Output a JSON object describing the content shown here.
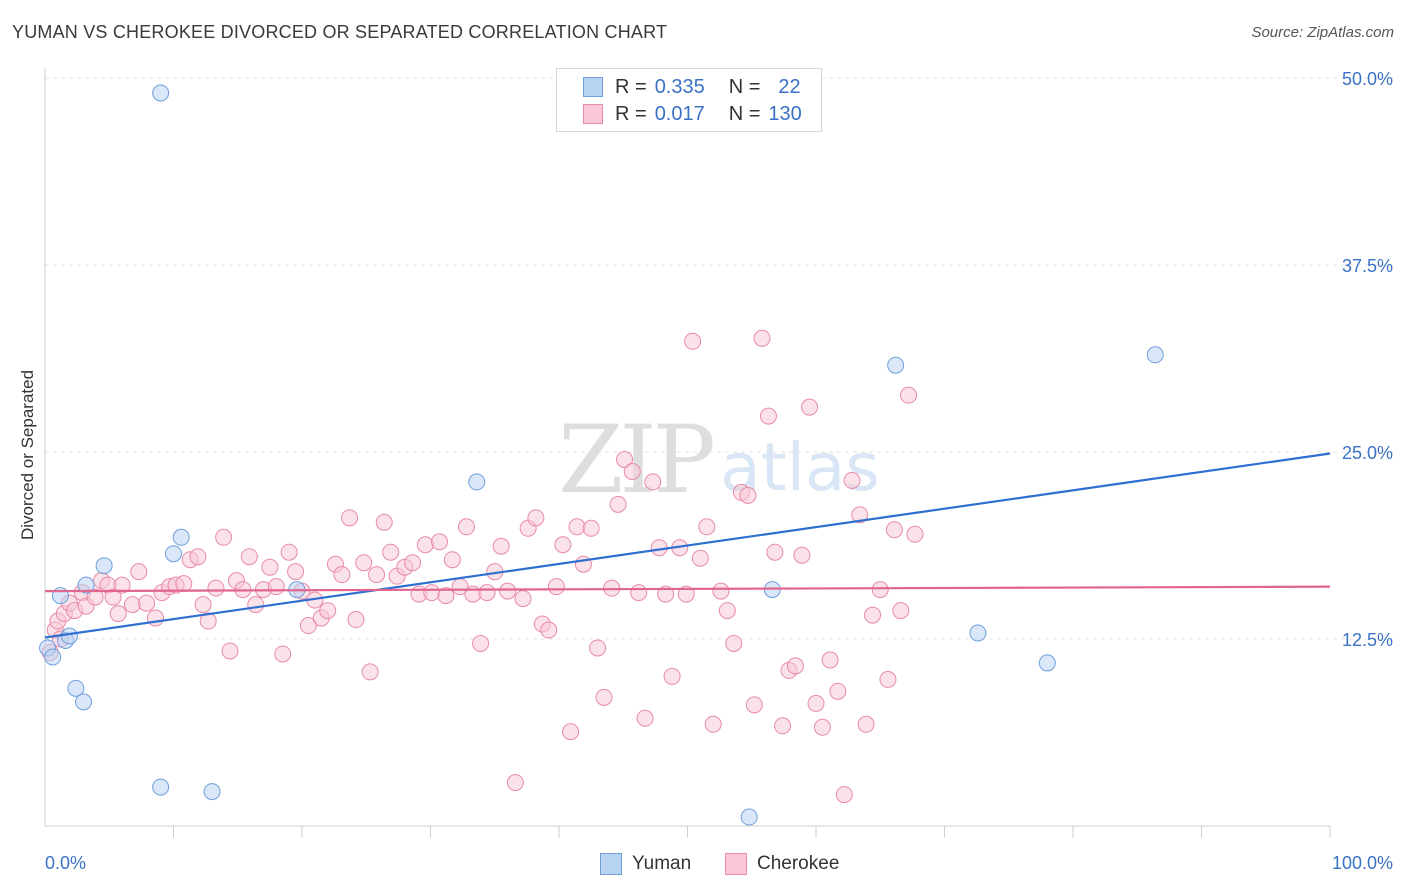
{
  "title": "YUMAN VS CHEROKEE DIVORCED OR SEPARATED CORRELATION CHART",
  "source": "Source: ZipAtlas.com",
  "watermark": {
    "zip": "ZIP",
    "atlas": "atlas"
  },
  "legend": {
    "rows": [
      {
        "r_label": "R =",
        "r_value": "0.335",
        "n_label": "N =",
        "n_value": "22"
      },
      {
        "r_label": "R =",
        "r_value": "0.017",
        "n_label": "N =",
        "n_value": "130"
      }
    ]
  },
  "bottom_legend": {
    "yuman": "Yuman",
    "cherokee": "Cherokee"
  },
  "colors": {
    "yuman_fill": "#b9d3f3",
    "yuman_stroke": "#6f9fdc",
    "yuman_line": "#2e6fd0",
    "cherokee_fill": "#f8c8d6",
    "cherokee_stroke": "#e88ba8",
    "cherokee_line": "#e0658f",
    "tick_label": "#3b72c6",
    "grid": "#e3e3e3"
  },
  "chart_data": {
    "type": "scatter",
    "title": "YUMAN VS CHEROKEE DIVORCED OR SEPARATED CORRELATION CHART",
    "xlabel": "",
    "ylabel": "Divorced or Separated",
    "xlim": [
      0,
      100
    ],
    "ylim": [
      0,
      50
    ],
    "x_tick_labels": [
      "0.0%",
      "100.0%"
    ],
    "y_ticks": [
      12.5,
      25.0,
      37.5,
      50.0
    ],
    "y_tick_labels": [
      "12.5%",
      "25.0%",
      "37.5%",
      "50.0%"
    ],
    "series": [
      {
        "name": "Yuman",
        "trend": {
          "x0": 0,
          "y0": 12.6,
          "x1": 100,
          "y1": 24.9
        },
        "points": [
          [
            0.2,
            11.9
          ],
          [
            0.6,
            11.3
          ],
          [
            1.2,
            15.4
          ],
          [
            1.6,
            12.4
          ],
          [
            1.9,
            12.7
          ],
          [
            2.4,
            9.2
          ],
          [
            3.0,
            8.3
          ],
          [
            3.2,
            16.1
          ],
          [
            4.6,
            17.4
          ],
          [
            9.0,
            49.0
          ],
          [
            9.0,
            2.6
          ],
          [
            10.0,
            18.2
          ],
          [
            10.6,
            19.3
          ],
          [
            13.0,
            2.3
          ],
          [
            19.6,
            15.8
          ],
          [
            33.6,
            23.0
          ],
          [
            54.8,
            0.6
          ],
          [
            56.6,
            15.8
          ],
          [
            66.2,
            30.8
          ],
          [
            72.6,
            12.9
          ],
          [
            78.0,
            10.9
          ],
          [
            86.4,
            31.5
          ]
        ]
      },
      {
        "name": "Cherokee",
        "trend": {
          "x0": 0,
          "y0": 15.7,
          "x1": 100,
          "y1": 16.0
        },
        "points": [
          [
            0.4,
            11.6
          ],
          [
            0.8,
            13.1
          ],
          [
            1.0,
            13.7
          ],
          [
            1.2,
            12.5
          ],
          [
            1.5,
            14.2
          ],
          [
            1.9,
            14.9
          ],
          [
            2.3,
            14.4
          ],
          [
            2.9,
            15.6
          ],
          [
            3.2,
            14.7
          ],
          [
            3.9,
            15.3
          ],
          [
            4.4,
            16.4
          ],
          [
            4.9,
            16.1
          ],
          [
            5.3,
            15.3
          ],
          [
            5.7,
            14.2
          ],
          [
            6.0,
            16.1
          ],
          [
            6.8,
            14.8
          ],
          [
            7.3,
            17.0
          ],
          [
            7.9,
            14.9
          ],
          [
            8.6,
            13.9
          ],
          [
            9.1,
            15.6
          ],
          [
            9.7,
            16.0
          ],
          [
            10.2,
            16.1
          ],
          [
            10.8,
            16.2
          ],
          [
            11.3,
            17.8
          ],
          [
            11.9,
            18.0
          ],
          [
            12.3,
            14.8
          ],
          [
            12.7,
            13.7
          ],
          [
            13.3,
            15.9
          ],
          [
            13.9,
            19.3
          ],
          [
            14.4,
            11.7
          ],
          [
            14.9,
            16.4
          ],
          [
            15.4,
            15.8
          ],
          [
            15.9,
            18.0
          ],
          [
            16.4,
            14.8
          ],
          [
            17.0,
            15.8
          ],
          [
            17.5,
            17.3
          ],
          [
            18.0,
            16.0
          ],
          [
            18.5,
            11.5
          ],
          [
            19.0,
            18.3
          ],
          [
            19.5,
            17.0
          ],
          [
            20.0,
            15.7
          ],
          [
            20.5,
            13.4
          ],
          [
            21.0,
            15.1
          ],
          [
            21.5,
            13.9
          ],
          [
            22.0,
            14.4
          ],
          [
            22.6,
            17.5
          ],
          [
            23.1,
            16.8
          ],
          [
            23.7,
            20.6
          ],
          [
            24.2,
            13.8
          ],
          [
            24.8,
            17.6
          ],
          [
            25.3,
            10.3
          ],
          [
            25.8,
            16.8
          ],
          [
            26.4,
            20.3
          ],
          [
            26.9,
            18.3
          ],
          [
            27.4,
            16.7
          ],
          [
            28.0,
            17.3
          ],
          [
            28.6,
            17.6
          ],
          [
            29.1,
            15.5
          ],
          [
            29.6,
            18.8
          ],
          [
            30.1,
            15.6
          ],
          [
            30.7,
            19.0
          ],
          [
            31.2,
            15.4
          ],
          [
            31.7,
            17.8
          ],
          [
            32.3,
            16.0
          ],
          [
            32.8,
            20.0
          ],
          [
            33.3,
            15.5
          ],
          [
            33.9,
            12.2
          ],
          [
            34.4,
            15.6
          ],
          [
            35.0,
            17.0
          ],
          [
            35.5,
            18.7
          ],
          [
            36.0,
            15.7
          ],
          [
            36.6,
            2.9
          ],
          [
            37.2,
            15.2
          ],
          [
            37.6,
            19.9
          ],
          [
            38.2,
            20.6
          ],
          [
            38.7,
            13.5
          ],
          [
            39.2,
            13.1
          ],
          [
            39.8,
            16.0
          ],
          [
            40.3,
            18.8
          ],
          [
            40.9,
            6.3
          ],
          [
            41.4,
            20.0
          ],
          [
            41.9,
            17.5
          ],
          [
            42.5,
            19.9
          ],
          [
            43.0,
            11.9
          ],
          [
            43.5,
            8.6
          ],
          [
            44.1,
            15.9
          ],
          [
            44.6,
            21.5
          ],
          [
            45.1,
            24.5
          ],
          [
            45.7,
            23.7
          ],
          [
            46.2,
            15.6
          ],
          [
            46.7,
            7.2
          ],
          [
            47.3,
            23.0
          ],
          [
            47.8,
            18.6
          ],
          [
            48.3,
            15.5
          ],
          [
            48.8,
            10.0
          ],
          [
            49.4,
            18.6
          ],
          [
            49.9,
            15.5
          ],
          [
            50.4,
            32.4
          ],
          [
            51.0,
            17.9
          ],
          [
            51.5,
            20.0
          ],
          [
            52.0,
            6.8
          ],
          [
            52.6,
            15.7
          ],
          [
            53.1,
            14.4
          ],
          [
            53.6,
            12.2
          ],
          [
            54.2,
            22.3
          ],
          [
            54.7,
            22.1
          ],
          [
            55.2,
            8.1
          ],
          [
            55.8,
            32.6
          ],
          [
            56.3,
            27.4
          ],
          [
            56.8,
            18.3
          ],
          [
            57.4,
            6.7
          ],
          [
            57.9,
            10.4
          ],
          [
            58.4,
            10.7
          ],
          [
            58.9,
            18.1
          ],
          [
            59.5,
            28.0
          ],
          [
            60.0,
            8.2
          ],
          [
            60.5,
            6.6
          ],
          [
            61.1,
            11.1
          ],
          [
            61.7,
            9.0
          ],
          [
            62.2,
            2.1
          ],
          [
            62.8,
            23.1
          ],
          [
            63.4,
            20.8
          ],
          [
            63.9,
            6.8
          ],
          [
            64.4,
            14.1
          ],
          [
            65.0,
            15.8
          ],
          [
            65.6,
            9.8
          ],
          [
            66.1,
            19.8
          ],
          [
            66.6,
            14.4
          ],
          [
            67.2,
            28.8
          ],
          [
            67.7,
            19.5
          ]
        ]
      }
    ]
  }
}
